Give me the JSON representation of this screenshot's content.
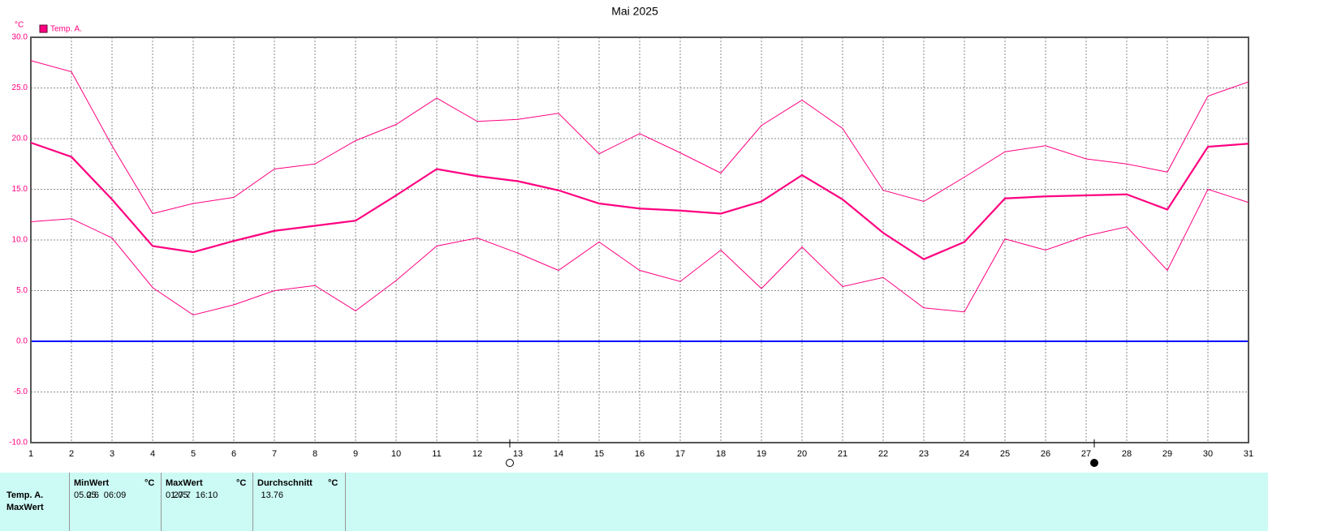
{
  "chart_data": {
    "type": "line",
    "title": "Mai 2025",
    "ylabel": "°C",
    "x": [
      1,
      2,
      3,
      4,
      5,
      6,
      7,
      8,
      9,
      10,
      11,
      12,
      13,
      14,
      15,
      16,
      17,
      18,
      19,
      20,
      21,
      22,
      23,
      24,
      25,
      26,
      27,
      28,
      29,
      30,
      31
    ],
    "xlim": [
      1,
      31
    ],
    "xticks": [
      1,
      2,
      3,
      4,
      5,
      6,
      7,
      8,
      9,
      10,
      11,
      12,
      13,
      14,
      15,
      16,
      17,
      18,
      19,
      20,
      21,
      22,
      23,
      24,
      25,
      26,
      27,
      28,
      29,
      30,
      31
    ],
    "ylim": [
      -10,
      30
    ],
    "yticks": [
      {
        "value": -10,
        "label": "-10.0"
      },
      {
        "value": -5,
        "label": "-5.0"
      },
      {
        "value": 0,
        "label": "0.0"
      },
      {
        "value": 5,
        "label": "5.0"
      },
      {
        "value": 10,
        "label": "10.0"
      },
      {
        "value": 15,
        "label": "15.0"
      },
      {
        "value": 20,
        "label": "20.0"
      },
      {
        "value": 25,
        "label": "25.0"
      },
      {
        "value": 30,
        "label": "30.0"
      }
    ],
    "grid": true,
    "zero_line_color": "#0000ff",
    "series": [
      {
        "name": "Temp. A.",
        "color": "#ff0080",
        "width": 2.2,
        "values": [
          19.6,
          18.2,
          14.0,
          9.4,
          8.8,
          9.9,
          10.9,
          11.4,
          11.9,
          14.4,
          17.0,
          16.3,
          15.8,
          14.9,
          13.6,
          13.1,
          12.9,
          12.6,
          13.8,
          16.4,
          14.0,
          10.7,
          8.1,
          9.8,
          14.1,
          14.3,
          14.4,
          14.5,
          13.0,
          19.2,
          19.5
        ]
      },
      {
        "color": "#ff0080",
        "width": 1,
        "values": [
          27.7,
          26.6,
          19.3,
          12.6,
          13.6,
          14.2,
          17.0,
          17.5,
          19.8,
          21.4,
          24.0,
          21.7,
          21.9,
          22.5,
          18.5,
          20.5,
          18.6,
          16.6,
          21.3,
          23.8,
          21.0,
          14.9,
          13.8,
          16.2,
          18.7,
          19.3,
          18.0,
          17.5,
          16.7,
          24.2,
          25.6
        ]
      },
      {
        "color": "#ff0080",
        "width": 1,
        "values": [
          11.8,
          12.1,
          10.2,
          5.3,
          2.6,
          3.6,
          5.0,
          5.5,
          3.0,
          6.0,
          9.4,
          10.2,
          8.7,
          7.0,
          9.8,
          7.0,
          5.9,
          9.0,
          5.2,
          9.3,
          5.4,
          6.3,
          3.3,
          2.9,
          10.1,
          9.0,
          10.4,
          11.3,
          7.0,
          15.0,
          13.7
        ]
      }
    ],
    "markers": [
      {
        "x": 12.8,
        "fill": "none"
      },
      {
        "x": 27.2,
        "fill": "#000000"
      }
    ]
  },
  "table": {
    "header": [
      "MinWert",
      "°C",
      "MaxWert",
      "°C",
      "Durchschnitt",
      "°C"
    ],
    "rows": [
      [
        "Temp. A.",
        "05.05.  06:09",
        2.6,
        "01.05.  16:10",
        27.7,
        13.76
      ],
      [
        "MaxWert"
      ]
    ]
  }
}
